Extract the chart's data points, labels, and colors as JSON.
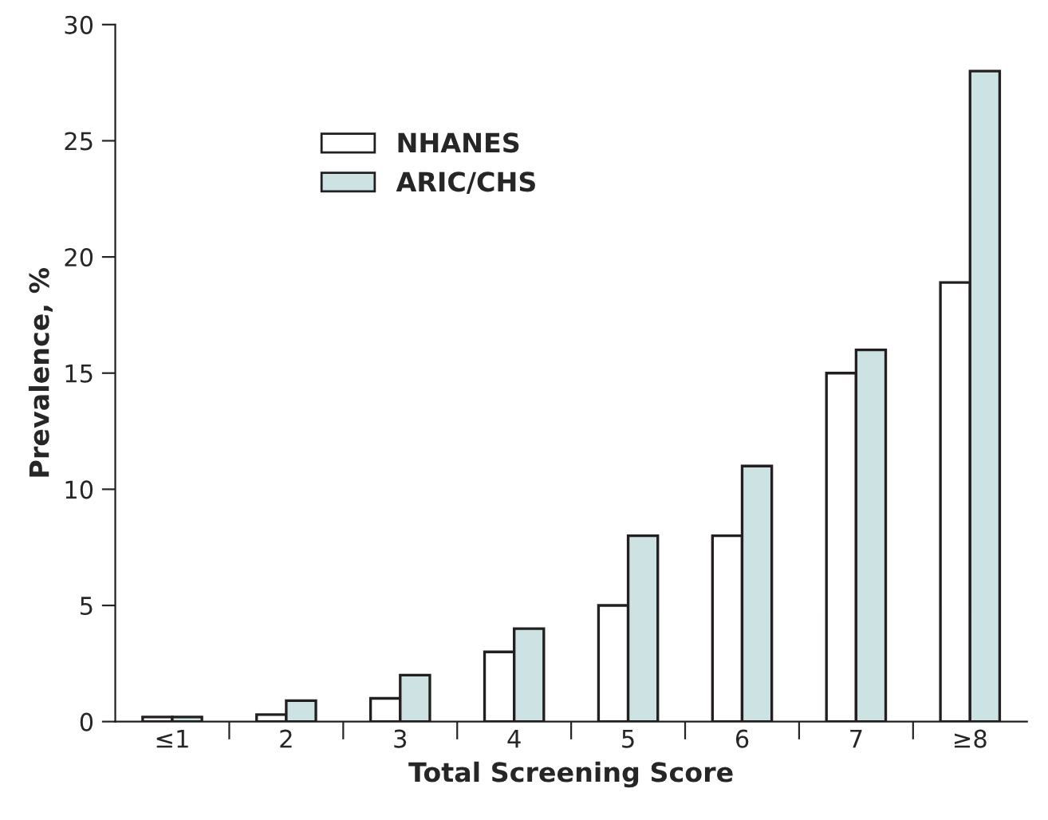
{
  "chart_data": {
    "type": "bar",
    "xlabel": "Total Screening Score",
    "ylabel": "Prevalence, %",
    "categories": [
      "≤1",
      "2",
      "3",
      "4",
      "5",
      "6",
      "7",
      "≥8"
    ],
    "series": [
      {
        "name": "NHANES",
        "color": "#ffffff",
        "values": [
          0.2,
          0.3,
          1,
          3,
          5,
          8,
          15,
          18.9
        ]
      },
      {
        "name": "ARIC/CHS",
        "color": "#cde3e3",
        "values": [
          0.2,
          0.9,
          2,
          4,
          8,
          11,
          16,
          28
        ]
      }
    ],
    "ylim": [
      0,
      30
    ],
    "yticks": [
      0,
      5,
      10,
      15,
      20,
      25,
      30
    ],
    "grid": false,
    "legend": "top left"
  }
}
